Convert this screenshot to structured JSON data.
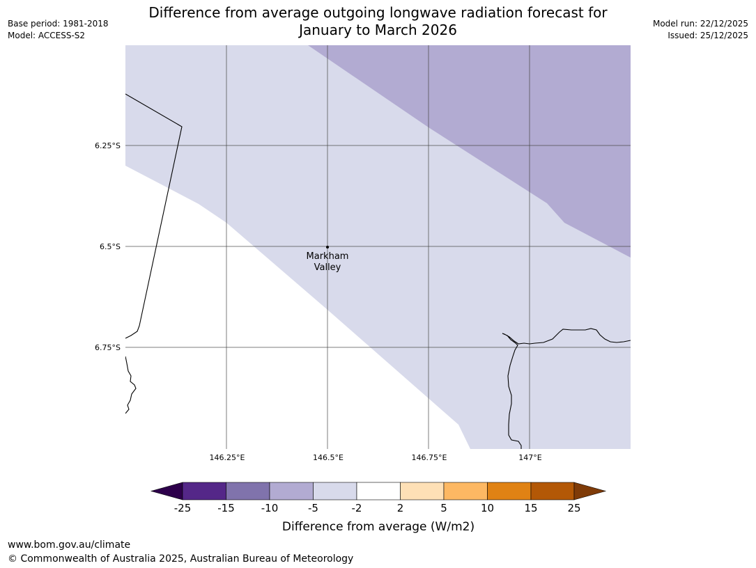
{
  "header": {
    "title_line1": "Difference from average outgoing longwave radiation forecast for",
    "title_line2": "January to March 2026",
    "base_period": "Base period: 1981-2018",
    "model": "Model: ACCESS-S2",
    "model_run": "Model run: 22/12/2025",
    "issued": "Issued: 25/12/2025"
  },
  "map": {
    "lat_labels": [
      "6.25°S",
      "6.5°S",
      "6.75°S"
    ],
    "lon_labels": [
      "146.25°E",
      "146.5°E",
      "146.75°E",
      "147°E"
    ],
    "place_line1": "Markham",
    "place_line2": "Valley"
  },
  "colorbar": {
    "label": "Difference from average (W/m2)",
    "ticks": [
      "-25",
      "-15",
      "-10",
      "-5",
      "-2",
      "2",
      "5",
      "10",
      "15",
      "25"
    ],
    "colors": {
      "below_min": "#2d004b",
      "minus25_minus15": "#542788",
      "minus15_minus10": "#8073ac",
      "minus10_minus5": "#b2abd2",
      "minus5_minus2": "#d8daeb",
      "minus2_2": "#ffffff",
      "p2_p5": "#fee0b6",
      "p5_p10": "#fdb863",
      "p10_p15": "#e08214",
      "p15_p25": "#b35806",
      "above_max": "#7f3b08"
    }
  },
  "footer": {
    "url": "www.bom.gov.au/climate",
    "copyright": "© Commonwealth of Australia 2025, Australian Bureau of Meteorology"
  }
}
